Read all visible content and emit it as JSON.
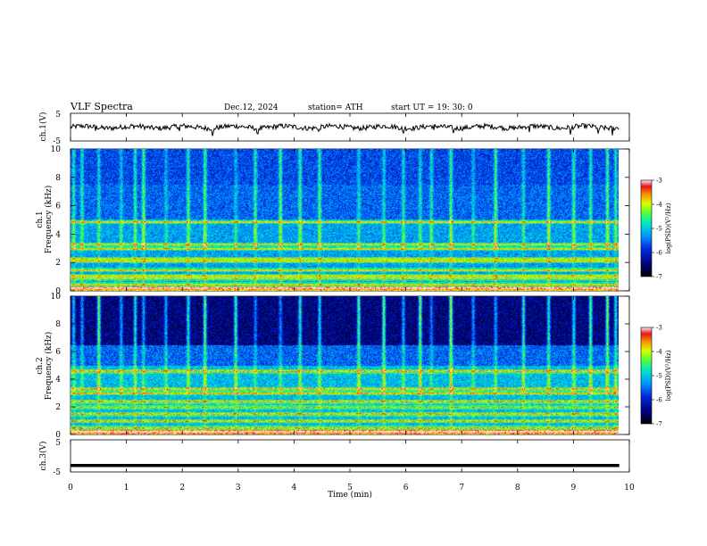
{
  "header": {
    "title": "VLF  Spectra",
    "date": "Dec.12, 2024",
    "station": "station= ATH",
    "start": "start  UT  =    19: 30: 0"
  },
  "chart_data": [
    {
      "type": "line",
      "name": "ch1-waveform",
      "ylabel": "ch.1(V)",
      "ylim": [
        -5,
        5
      ],
      "yticks": [
        "5",
        "-5"
      ],
      "xlim": [
        0,
        10
      ],
      "baseline": 0,
      "spikes_min": [
        0.45,
        1.05,
        1.95,
        2.55,
        3.35,
        4.45,
        5.95,
        6.5,
        6.85,
        7.7,
        8.2,
        8.95,
        9.45,
        9.7
      ]
    },
    {
      "type": "heatmap",
      "name": "ch1-spectrogram",
      "ylabel": "ch.1\nFrequency  (kHz)",
      "ylim": [
        0,
        10
      ],
      "yticks": [
        "0",
        "2",
        "4",
        "6",
        "8",
        "10"
      ],
      "xlim": [
        0,
        10
      ],
      "data_end_min": 9.82,
      "colorbar": {
        "label": "log(PSD)(V²/Hz)",
        "ticks": [
          "-3",
          "-4",
          "-5",
          "-6",
          "-7"
        ],
        "range": [
          -7,
          -3
        ]
      },
      "bright_bands_khz": [
        0.2,
        0.5,
        0.9,
        1.1,
        1.5,
        2.1,
        2.3,
        3.0,
        3.3,
        4.9
      ],
      "burst_times_min": [
        0.05,
        0.2,
        0.5,
        0.9,
        1.15,
        1.3,
        1.7,
        2.1,
        2.4,
        2.95,
        3.3,
        3.75,
        4.1,
        4.45,
        5.15,
        5.6,
        5.95,
        6.25,
        6.45,
        6.8,
        7.2,
        7.6,
        8.1,
        8.55,
        9.0,
        9.3,
        9.6,
        9.75
      ]
    },
    {
      "type": "heatmap",
      "name": "ch2-spectrogram",
      "ylabel": "ch.2\nFrequency  (kHz)",
      "ylim": [
        0,
        10
      ],
      "yticks": [
        "0",
        "2",
        "4",
        "6",
        "8",
        "10"
      ],
      "xlim": [
        0,
        10
      ],
      "data_end_min": 9.82,
      "colorbar": {
        "label": "log(PSD)(V²/Hz)",
        "ticks": [
          "-3",
          "-4",
          "-5",
          "-6",
          "-7"
        ],
        "range": [
          -7,
          -3
        ]
      },
      "bright_bands_khz": [
        0.2,
        0.5,
        1.0,
        1.5,
        2.0,
        2.4,
        3.0,
        3.3,
        4.6
      ],
      "burst_times_min": [
        0.05,
        0.2,
        0.5,
        0.9,
        1.15,
        1.3,
        1.7,
        2.1,
        2.4,
        2.95,
        3.3,
        3.75,
        4.1,
        4.45,
        5.15,
        5.6,
        5.95,
        6.25,
        6.45,
        6.8,
        7.2,
        7.6,
        8.1,
        8.55,
        9.0,
        9.3,
        9.6,
        9.75
      ]
    },
    {
      "type": "line",
      "name": "ch3-waveform",
      "ylabel": "ch.3(V)",
      "ylim": [
        -5,
        5
      ],
      "yticks": [
        "5",
        "-5"
      ],
      "xlim": [
        0,
        10
      ],
      "baseline": -3.0,
      "xlabel": "Time  (min)",
      "xticks": [
        "0",
        "1",
        "2",
        "3",
        "4",
        "5",
        "6",
        "7",
        "8",
        "9",
        "10"
      ]
    }
  ]
}
